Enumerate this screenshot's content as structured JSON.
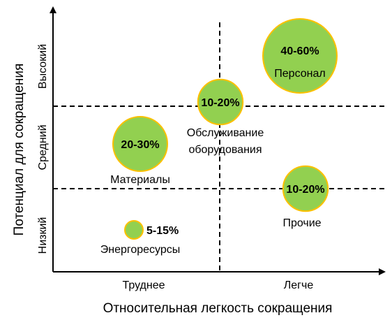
{
  "chart_data": {
    "type": "bubble",
    "title": "",
    "xlabel": "Относительная легкость сокращения",
    "ylabel": "Потенциал для сокращения",
    "x_categories": [
      "Труднее",
      "Легче"
    ],
    "y_categories": [
      "Низкий",
      "Средний",
      "Высокий"
    ],
    "grid": "dashed quadrant dividers",
    "legend": "none",
    "bubble_color": "#92d050",
    "bubble_edge_color": "#ffc000",
    "series": [
      {
        "name": "Персонал",
        "value_label": "40-60%",
        "x_category": "Легче",
        "y_category": "Высокий",
        "size": 60
      },
      {
        "name": "Обслуживание оборудования",
        "value_label": "10-20%",
        "x_category": "Легче",
        "y_category": "Средний",
        "size": 20
      },
      {
        "name": "Материалы",
        "value_label": "20-30%",
        "x_category": "Труднее",
        "y_category": "Средний",
        "size": 30
      },
      {
        "name": "Прочие",
        "value_label": "10-20%",
        "x_category": "Легче",
        "y_category": "Низкий",
        "size": 20
      },
      {
        "name": "Энергоресурсы",
        "value_label": "5-15%",
        "x_category": "Труднее",
        "y_category": "Низкий",
        "size": 8
      }
    ]
  }
}
